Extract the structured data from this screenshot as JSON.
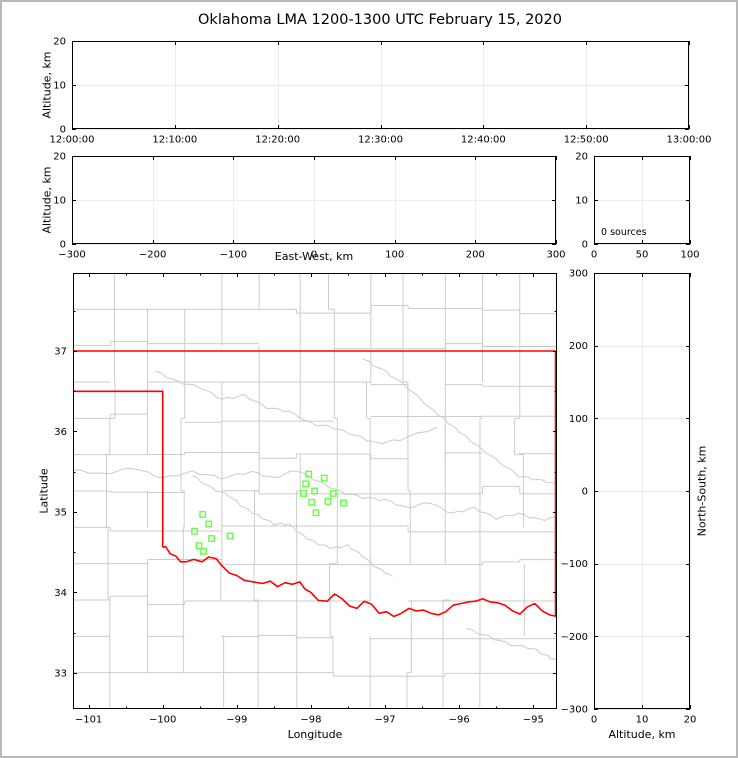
{
  "title": "Oklahoma LMA 1200-1300 UTC February 15, 2020",
  "colors": {
    "background": "#ffffff",
    "frame_border": "#b9b9b9",
    "axis": "#000000",
    "grid": "#ececec",
    "county_line": "#cbcbcb",
    "river_line": "#cbcbcb",
    "state_border": "#ff0000",
    "station": "#66ff44"
  },
  "chart_data": [
    {
      "id": "altitude_vs_time",
      "type": "scatter",
      "xlabel": "",
      "ylabel": "Altitude, km",
      "xlim": [
        0,
        3600
      ],
      "ylim": [
        0,
        20
      ],
      "x_tick_values": [
        0,
        600,
        1200,
        1800,
        2400,
        3000,
        3600
      ],
      "x_tick_labels": [
        "12:00:00",
        "12:10:00",
        "12:20:00",
        "12:30:00",
        "12:40:00",
        "12:50:00",
        "13:00:00"
      ],
      "y_tick_values": [
        0,
        10,
        20
      ],
      "y_tick_labels": [
        "0",
        "10",
        "20"
      ],
      "grid": true,
      "points": []
    },
    {
      "id": "altitude_vs_east_west",
      "type": "scatter",
      "xlabel": "East-West, km",
      "ylabel": "Altitude, km",
      "xlim": [
        -300,
        300
      ],
      "ylim": [
        0,
        20
      ],
      "x_tick_values": [
        -300,
        -200,
        -100,
        0,
        100,
        200,
        300
      ],
      "x_tick_labels": [
        "−300",
        "−200",
        "−100",
        "0",
        "100",
        "200",
        "300"
      ],
      "y_tick_values": [
        0,
        10,
        20
      ],
      "y_tick_labels": [
        "0",
        "10",
        "20"
      ],
      "grid": true,
      "points": []
    },
    {
      "id": "source_count_histogram",
      "type": "line",
      "annotation": "0 sources",
      "xlim": [
        0,
        100
      ],
      "ylim": [
        0,
        20
      ],
      "x_tick_values": [
        0,
        50,
        100
      ],
      "x_tick_labels": [
        "0",
        "50",
        "100"
      ],
      "y_tick_values": [
        0,
        10,
        20
      ],
      "y_tick_labels": [
        "0",
        "10",
        "20"
      ],
      "grid": true,
      "points": []
    },
    {
      "id": "plan_view_map",
      "type": "map",
      "xlabel": "Longitude",
      "ylabel": "Latitude",
      "xlim": [
        -101.21,
        -94.68
      ],
      "ylim": [
        32.55,
        37.97
      ],
      "x_tick_values": [
        -101,
        -100,
        -99,
        -98,
        -97,
        -96,
        -95
      ],
      "x_tick_labels": [
        "−101",
        "−100",
        "−99",
        "−98",
        "−97",
        "−96",
        "−95"
      ],
      "y_tick_values": [
        33,
        34,
        35,
        36,
        37
      ],
      "y_tick_labels": [
        "33",
        "34",
        "35",
        "36",
        "37"
      ],
      "minor_step": 0.5,
      "grid": false,
      "stations": [
        [
          -99.46,
          34.97
        ],
        [
          -99.38,
          34.85
        ],
        [
          -99.57,
          34.76
        ],
        [
          -99.34,
          34.67
        ],
        [
          -99.09,
          34.7
        ],
        [
          -99.51,
          34.58
        ],
        [
          -99.45,
          34.51
        ],
        [
          -98.03,
          35.47
        ],
        [
          -97.82,
          35.42
        ],
        [
          -98.07,
          35.35
        ],
        [
          -98.1,
          35.23
        ],
        [
          -97.95,
          35.26
        ],
        [
          -97.7,
          35.23
        ],
        [
          -97.99,
          35.12
        ],
        [
          -97.77,
          35.13
        ],
        [
          -97.56,
          35.11
        ],
        [
          -97.93,
          34.99
        ]
      ],
      "state_border": [
        [
          [
            -101.21,
            37.0
          ],
          [
            -94.7,
            37.0
          ]
        ],
        [
          [
            -94.7,
            37.0
          ],
          [
            -94.7,
            33.7
          ]
        ],
        [
          [
            -101.21,
            36.5
          ],
          [
            -100.0,
            36.5
          ],
          [
            -100.0,
            34.56
          ]
        ],
        [
          [
            -100.0,
            34.56
          ],
          [
            -99.96,
            34.57
          ],
          [
            -99.9,
            34.48
          ],
          [
            -99.82,
            34.45
          ],
          [
            -99.76,
            34.38
          ],
          [
            -99.68,
            34.38
          ],
          [
            -99.58,
            34.41
          ],
          [
            -99.47,
            34.38
          ],
          [
            -99.38,
            34.44
          ],
          [
            -99.28,
            34.42
          ],
          [
            -99.21,
            34.34
          ],
          [
            -99.1,
            34.24
          ],
          [
            -99.0,
            34.21
          ],
          [
            -98.9,
            34.15
          ],
          [
            -98.78,
            34.13
          ],
          [
            -98.65,
            34.11
          ],
          [
            -98.55,
            34.14
          ],
          [
            -98.45,
            34.07
          ],
          [
            -98.35,
            34.12
          ],
          [
            -98.25,
            34.1
          ],
          [
            -98.15,
            34.13
          ],
          [
            -98.08,
            34.04
          ],
          [
            -98.0,
            34.0
          ],
          [
            -97.9,
            33.9
          ],
          [
            -97.78,
            33.89
          ],
          [
            -97.68,
            33.98
          ],
          [
            -97.58,
            33.92
          ],
          [
            -97.48,
            33.83
          ],
          [
            -97.38,
            33.8
          ],
          [
            -97.28,
            33.89
          ],
          [
            -97.18,
            33.85
          ],
          [
            -97.08,
            33.74
          ],
          [
            -96.98,
            33.76
          ],
          [
            -96.88,
            33.7
          ],
          [
            -96.78,
            33.74
          ],
          [
            -96.68,
            33.8
          ],
          [
            -96.58,
            33.77
          ],
          [
            -96.48,
            33.78
          ],
          [
            -96.38,
            33.74
          ],
          [
            -96.28,
            33.72
          ],
          [
            -96.18,
            33.76
          ],
          [
            -96.08,
            33.84
          ],
          [
            -95.98,
            33.86
          ],
          [
            -95.88,
            33.88
          ],
          [
            -95.78,
            33.89
          ],
          [
            -95.68,
            33.92
          ],
          [
            -95.58,
            33.88
          ],
          [
            -95.48,
            33.87
          ],
          [
            -95.38,
            33.84
          ],
          [
            -95.28,
            33.77
          ],
          [
            -95.18,
            33.73
          ],
          [
            -95.08,
            33.82
          ],
          [
            -94.98,
            33.86
          ],
          [
            -94.88,
            33.77
          ],
          [
            -94.78,
            33.72
          ],
          [
            -94.68,
            33.7
          ]
        ]
      ],
      "rivers": [
        [
          [
            -101.21,
            35.52
          ],
          [
            -100.8,
            35.47
          ],
          [
            -100.4,
            35.55
          ],
          [
            -100.0,
            35.42
          ],
          [
            -99.6,
            35.5
          ],
          [
            -99.2,
            35.42
          ],
          [
            -98.8,
            35.5
          ],
          [
            -98.5,
            35.42
          ],
          [
            -98.2,
            35.52
          ],
          [
            -97.9,
            35.38
          ],
          [
            -97.6,
            35.25
          ],
          [
            -97.3,
            35.18
          ],
          [
            -97.0,
            35.15
          ],
          [
            -96.7,
            35.05
          ],
          [
            -96.4,
            35.12
          ],
          [
            -96.1,
            34.98
          ],
          [
            -95.8,
            35.05
          ],
          [
            -95.5,
            34.92
          ],
          [
            -95.2,
            34.98
          ],
          [
            -94.9,
            34.9
          ],
          [
            -94.68,
            34.93
          ]
        ],
        [
          [
            -100.1,
            36.75
          ],
          [
            -99.8,
            36.62
          ],
          [
            -99.5,
            36.55
          ],
          [
            -99.2,
            36.4
          ],
          [
            -98.9,
            36.45
          ],
          [
            -98.6,
            36.3
          ],
          [
            -98.3,
            36.25
          ],
          [
            -98.0,
            36.1
          ],
          [
            -97.7,
            36.05
          ],
          [
            -97.4,
            35.95
          ],
          [
            -97.1,
            35.85
          ],
          [
            -96.8,
            35.9
          ],
          [
            -96.3,
            36.05
          ]
        ],
        [
          [
            -97.3,
            36.9
          ],
          [
            -97.0,
            36.75
          ],
          [
            -96.7,
            36.55
          ],
          [
            -96.4,
            36.3
          ],
          [
            -96.2,
            36.15
          ],
          [
            -96.0,
            36.0
          ],
          [
            -95.8,
            35.85
          ],
          [
            -95.5,
            35.65
          ],
          [
            -95.2,
            35.45
          ],
          [
            -94.95,
            35.4
          ],
          [
            -94.68,
            35.35
          ]
        ],
        [
          [
            -99.6,
            35.45
          ],
          [
            -99.35,
            35.3
          ],
          [
            -99.1,
            35.2
          ],
          [
            -98.9,
            35.05
          ],
          [
            -98.7,
            34.95
          ],
          [
            -98.5,
            34.85
          ],
          [
            -98.3,
            34.85
          ],
          [
            -98.1,
            34.7
          ],
          [
            -97.9,
            34.6
          ],
          [
            -97.7,
            34.55
          ],
          [
            -97.5,
            34.58
          ],
          [
            -97.3,
            34.45
          ],
          [
            -97.1,
            34.3
          ],
          [
            -96.9,
            34.2
          ]
        ],
        [
          [
            -95.9,
            33.55
          ],
          [
            -95.6,
            33.45
          ],
          [
            -95.3,
            33.35
          ],
          [
            -95.0,
            33.3
          ],
          [
            -94.8,
            33.2
          ],
          [
            -94.68,
            33.15
          ]
        ]
      ],
      "county_grid": {
        "cols": 13,
        "rows": 12,
        "seed": 12
      },
      "points": []
    },
    {
      "id": "altitude_vs_north_south",
      "type": "scatter",
      "xlabel": "Altitude, km",
      "ylabel_right": "North-South, km",
      "xlim": [
        0,
        20
      ],
      "ylim": [
        -300,
        300
      ],
      "x_tick_values": [
        0,
        10,
        20
      ],
      "x_tick_labels": [
        "0",
        "10",
        "20"
      ],
      "y_tick_values": [
        -300,
        -200,
        -100,
        0,
        100,
        200,
        300
      ],
      "y_tick_labels": [
        "−300",
        "−200",
        "−100",
        "0",
        "100",
        "200",
        "300"
      ],
      "grid": true,
      "points": []
    }
  ]
}
